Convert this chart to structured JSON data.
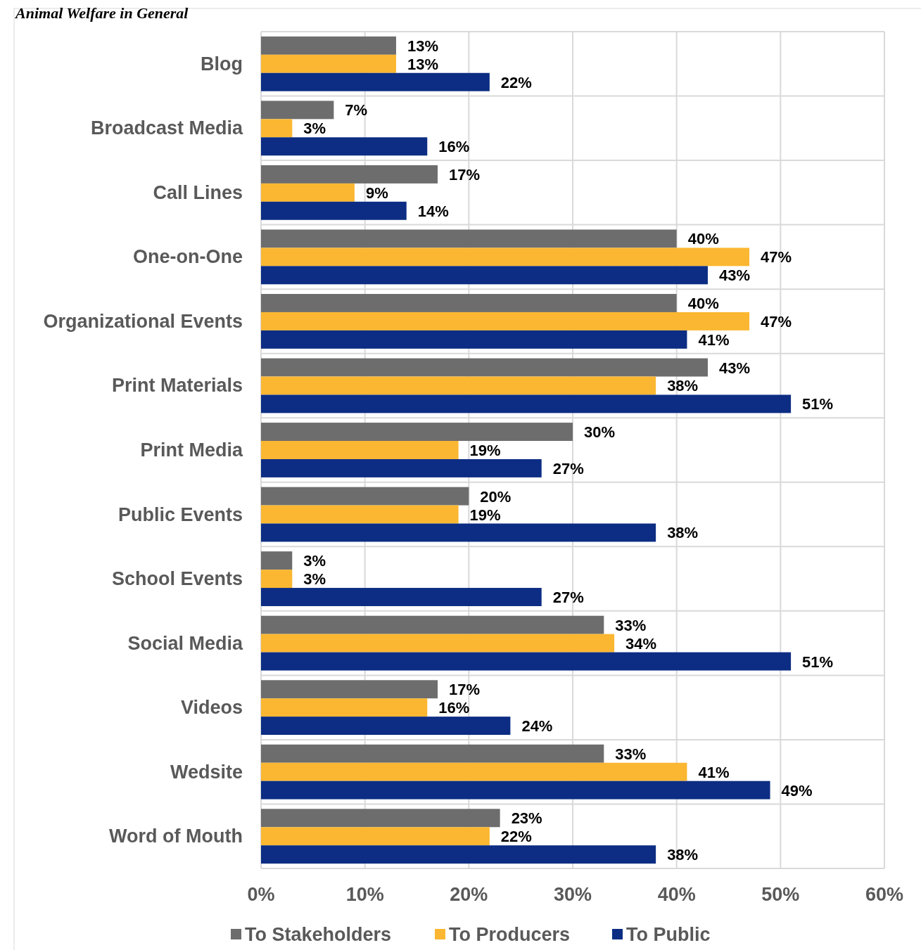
{
  "chart_data": {
    "type": "bar",
    "orientation": "horizontal",
    "title": "Animal Welfare in General",
    "categories": [
      "Blog",
      "Broadcast Media",
      "Call Lines",
      "One-on-One",
      "Organizational Events",
      "Print Materials",
      "Print Media",
      "Public Events",
      "School Events",
      "Social Media",
      "Videos",
      "Wedsite",
      "Word of Mouth"
    ],
    "series": [
      {
        "name": "To Stakeholders",
        "color": "#6d6d6d",
        "values": [
          13,
          7,
          17,
          40,
          40,
          43,
          30,
          20,
          3,
          33,
          17,
          33,
          23
        ],
        "value_labels": [
          "13%",
          "7%",
          "17%",
          "40%",
          "40%",
          "43%",
          "30%",
          "20%",
          "3%",
          "33%",
          "17%",
          "33%",
          "23%"
        ]
      },
      {
        "name": "To Producers",
        "color": "#fbb731",
        "values": [
          13,
          3,
          9,
          47,
          47,
          38,
          19,
          19,
          3,
          34,
          16,
          41,
          22
        ],
        "value_labels": [
          "13%",
          "3%",
          "9%",
          "47%",
          "47%",
          "38%",
          "19%",
          "19%",
          "3%",
          "34%",
          "16%",
          "41%",
          "22%"
        ]
      },
      {
        "name": "To Public",
        "color": "#0c2d83",
        "values": [
          22,
          16,
          14,
          43,
          41,
          51,
          27,
          38,
          27,
          51,
          24,
          49,
          38
        ],
        "value_labels": [
          "22%",
          "16%",
          "14%",
          "43%",
          "41%",
          "51%",
          "27%",
          "38%",
          "27%",
          "51%",
          "24%",
          "49%",
          "38%"
        ]
      }
    ],
    "xlim": [
      0,
      60
    ],
    "xticks": [
      {
        "value": 0,
        "label": "0%"
      },
      {
        "value": 10,
        "label": "10%"
      },
      {
        "value": 20,
        "label": "20%"
      },
      {
        "value": 30,
        "label": "30%"
      },
      {
        "value": 40,
        "label": "40%"
      },
      {
        "value": 50,
        "label": "50%"
      },
      {
        "value": 60,
        "label": "60%"
      }
    ],
    "grid": true,
    "legend": "bottom"
  }
}
